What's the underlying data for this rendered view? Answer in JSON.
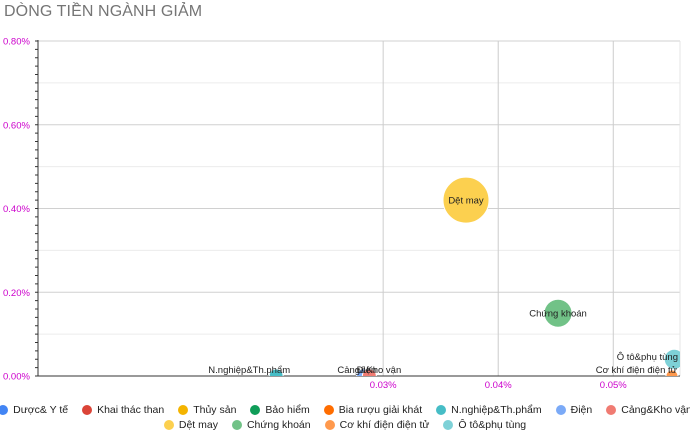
{
  "chart_title": "DÒNG TIỀN NGÀNH GIẢM",
  "chart_data": {
    "type": "scatter",
    "title": "DÒNG TIỀN NGÀNH GIẢM",
    "xlabel": "",
    "ylabel": "",
    "xlim": [
      0.0,
      0.0558
    ],
    "ylim": [
      0.0,
      0.8
    ],
    "x_ticks": [
      "0.03%",
      "0.04%",
      "0.05%"
    ],
    "x_tick_values": [
      0.03,
      0.04,
      0.05
    ],
    "y_ticks": [
      "0.00%",
      "0.20%",
      "0.40%",
      "0.60%",
      "0.80%"
    ],
    "y_tick_values": [
      0.0,
      0.2,
      0.4,
      0.6,
      0.8
    ],
    "grid": true,
    "legend_position": "bottom",
    "series": [
      {
        "name": "Dược& Y tế",
        "color": "#4285f4",
        "points": []
      },
      {
        "name": "Khai thác than",
        "color": "#db4437",
        "points": []
      },
      {
        "name": "Thủy sản",
        "color": "#f4b400",
        "points": []
      },
      {
        "name": "Bảo hiểm",
        "color": "#0f9d58",
        "points": []
      },
      {
        "name": "Bia rượu giải khát",
        "color": "#ff6d00",
        "points": []
      },
      {
        "name": "N.nghiệp&Th.phẩm",
        "color": "#46bdc6",
        "points": [
          {
            "x": 0.0207,
            "y": 0.0,
            "size": 7,
            "label": "N.nghiệp&Th.phẩm"
          }
        ]
      },
      {
        "name": "Điện",
        "color": "#7baaf7",
        "points": [
          {
            "x": 0.0283,
            "y": 0.0,
            "size": 7,
            "label": "Điện"
          }
        ]
      },
      {
        "name": "Cảng&Kho vận",
        "color": "#f07b72",
        "points": [
          {
            "x": 0.0288,
            "y": 0.0,
            "size": 7,
            "label": "Cảng&Kho vận"
          }
        ]
      },
      {
        "name": "Dệt may",
        "color": "#fcd04f",
        "points": [
          {
            "x": 0.0372,
            "y": 0.42,
            "size": 23,
            "label": "Dệt may"
          }
        ]
      },
      {
        "name": "Chứng khoán",
        "color": "#71c287",
        "points": [
          {
            "x": 0.0452,
            "y": 0.15,
            "size": 14,
            "label": "Chứng khoán"
          }
        ]
      },
      {
        "name": "Cơ khí điện điện tử",
        "color": "#ff994d",
        "points": [
          {
            "x": 0.0551,
            "y": 0.0,
            "size": 6,
            "label": "Cơ khí điện điện tử"
          }
        ]
      },
      {
        "name": "Ô tô&phụ tùng",
        "color": "#7ed1d7",
        "points": [
          {
            "x": 0.0553,
            "y": 0.04,
            "size": 10,
            "label": "Ô tô&phụ tùng"
          }
        ]
      }
    ],
    "legend_rows": [
      [
        "Dược& Y tế",
        "Khai thác than",
        "Thủy sản",
        "Bảo hiểm",
        "Bia rượu giải khát",
        "N.nghiệp&Th.phẩm",
        "Điện",
        "Cảng&Kho vận"
      ],
      [
        "Dệt may",
        "Chứng khoán",
        "Cơ khí điện điện tử",
        "Ô tô&phụ tùng"
      ]
    ]
  },
  "colors": {
    "tick_label": "#cc00cc",
    "grid": "#cccccc",
    "axis": "#333333"
  }
}
